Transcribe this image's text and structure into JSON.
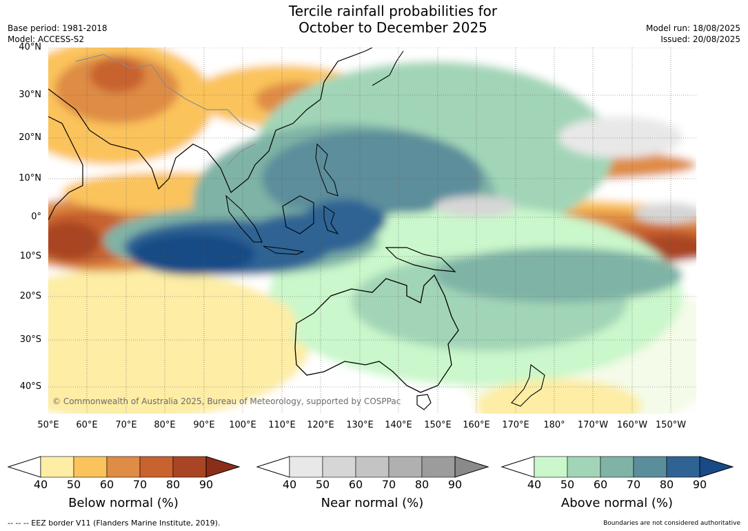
{
  "header": {
    "title_line1": "Tercile rainfall probabilities for",
    "title_line2": "October to December 2025",
    "base_period": "Base period: 1981-2018",
    "model": "Model: ACCESS-S2",
    "model_run": "Model run: 18/08/2025",
    "issued": "Issued: 20/08/2025"
  },
  "map": {
    "lat_labels": [
      "40°N",
      "30°N",
      "20°N",
      "10°N",
      "0°",
      "10°S",
      "20°S",
      "30°S",
      "40°S"
    ],
    "lon_labels": [
      "50°E",
      "60°E",
      "70°E",
      "80°E",
      "90°E",
      "100°E",
      "110°E",
      "120°E",
      "130°E",
      "140°E",
      "150°E",
      "160°E",
      "170°E",
      "180°",
      "170°W",
      "160°W",
      "150°W"
    ],
    "copyright": "© Commonwealth of Australia 2025, Bureau of Meteorology, supported by COSPPac"
  },
  "legends": {
    "below": {
      "title": "Below normal (%)",
      "ticks": [
        "40",
        "50",
        "60",
        "70",
        "80",
        "90"
      ],
      "colors": [
        "#fdeda5",
        "#fbc35c",
        "#df8c44",
        "#c8622e",
        "#a94424",
        "#8a2e1a"
      ]
    },
    "near": {
      "title": "Near normal (%)",
      "ticks": [
        "40",
        "50",
        "60",
        "70",
        "80",
        "90"
      ],
      "colors": [
        "#e8e8e8",
        "#d6d6d6",
        "#c4c4c4",
        "#b0b0b0",
        "#9c9c9c",
        "#8a8a8a"
      ]
    },
    "above": {
      "title": "Above normal (%)",
      "ticks": [
        "40",
        "50",
        "60",
        "70",
        "80",
        "90"
      ],
      "colors": [
        "#caf7cb",
        "#a2d5b7",
        "#7fb3a6",
        "#5b8e9b",
        "#2f6394",
        "#184b86"
      ]
    }
  },
  "footer": {
    "eez_note": "--  --  -- EEZ border V11 (Flanders Marine Institute, 2019).",
    "disclaimer": "Boundaries are not considered authoritative"
  }
}
